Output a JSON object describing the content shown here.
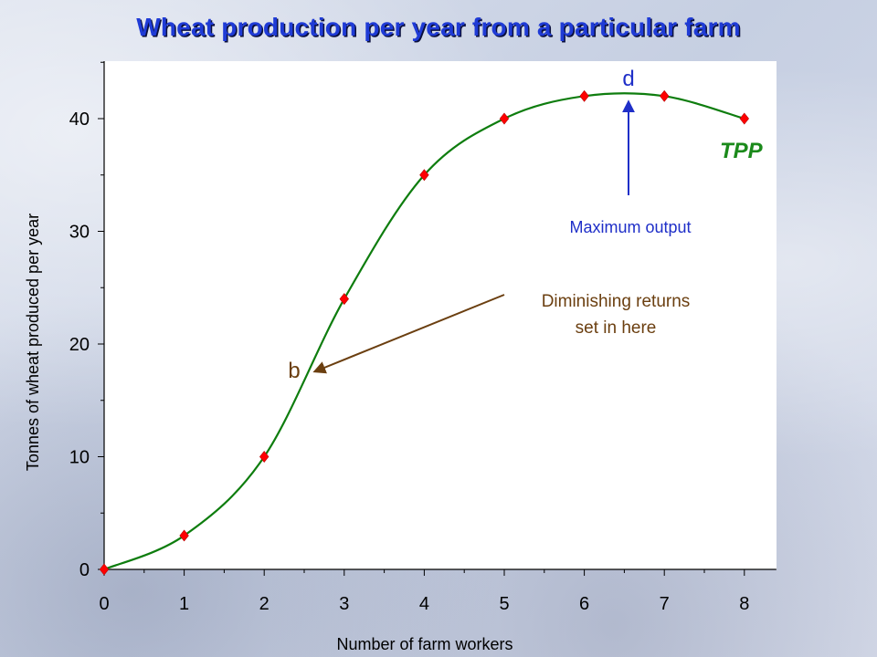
{
  "title": "Wheat production per year from a particular farm",
  "chart_data": {
    "type": "line",
    "title": "Wheat production per year from a particular farm",
    "xlabel": "Number of farm workers",
    "ylabel": "Tonnes of wheat produced per year",
    "x": [
      0,
      1,
      2,
      3,
      4,
      5,
      6,
      7,
      8
    ],
    "series": [
      {
        "name": "TPP",
        "values": [
          0,
          3,
          10,
          24,
          35,
          40,
          42,
          42,
          40
        ]
      }
    ],
    "xlim": [
      0,
      8.4
    ],
    "ylim": [
      0,
      45
    ],
    "xticks": [
      "0",
      "1",
      "2",
      "3",
      "4",
      "5",
      "6",
      "7",
      "8"
    ],
    "yticks": [
      "0",
      "10",
      "20",
      "30",
      "40"
    ],
    "grid": false,
    "annotations": {
      "max_output": {
        "letter": "d",
        "text": "Maximum output",
        "x": 6.5,
        "y": 42.2
      },
      "diminishing": {
        "letter": "b",
        "line1": "Diminishing returns",
        "line2": "set in here",
        "x": 2.6,
        "y": 17.5
      }
    },
    "colors": {
      "line": "#0e7d0e",
      "markers": "#ff0000",
      "blue_annotation": "#1f2fc8",
      "brown_annotation": "#6b3f10",
      "tpp_label": "#1b8a1b",
      "title": "#1f3bd6"
    }
  }
}
